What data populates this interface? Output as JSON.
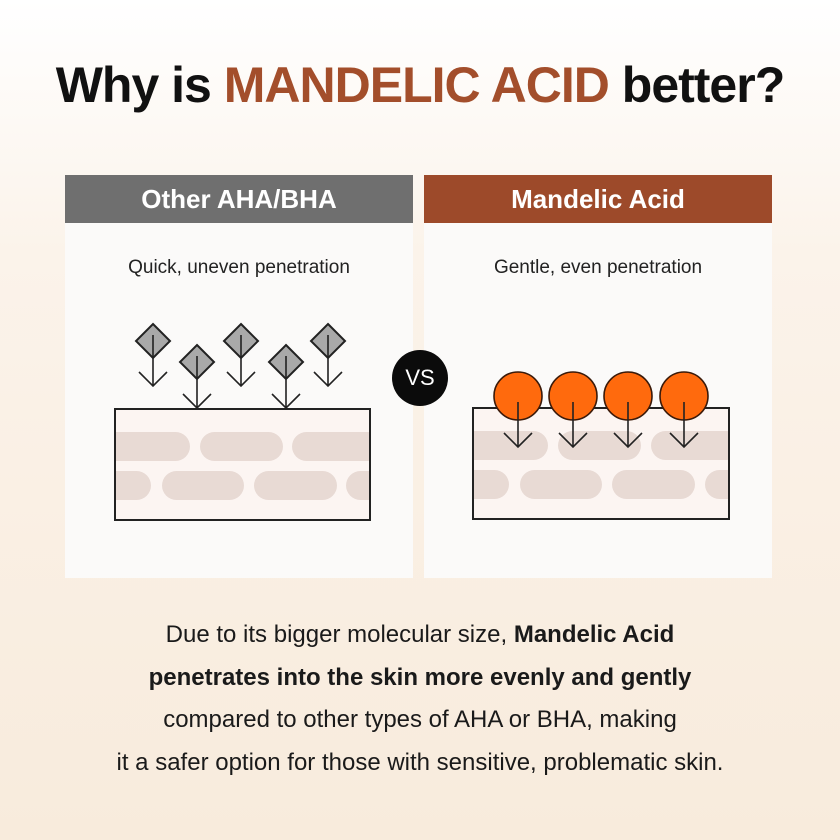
{
  "title": {
    "prefix": "Why is ",
    "highlight": "MANDELIC ACID",
    "suffix": " better?",
    "highlight_color": "#a34e2b"
  },
  "left_panel": {
    "header": "Other AHA/BHA",
    "caption": "Quick, uneven penetration",
    "header_color": "#6f6f6f",
    "molecule_icon": "gray-diamond",
    "molecule_color": "#a9a9a9"
  },
  "vs_label": "VS",
  "right_panel": {
    "header": "Mandelic Acid",
    "caption": "Gentle, even penetration",
    "header_color": "#9d4a2a",
    "molecule_icon": "orange-circle",
    "molecule_color": "#ff6a0d"
  },
  "body": {
    "line1_plain": "Due to its bigger molecular size, ",
    "line1_bold": "Mandelic Acid",
    "line2_bold": "penetrates into the skin more evenly and gently",
    "line3": "compared to other types of AHA or BHA, making",
    "line4": "it a safer option for those with sensitive, problematic skin."
  }
}
